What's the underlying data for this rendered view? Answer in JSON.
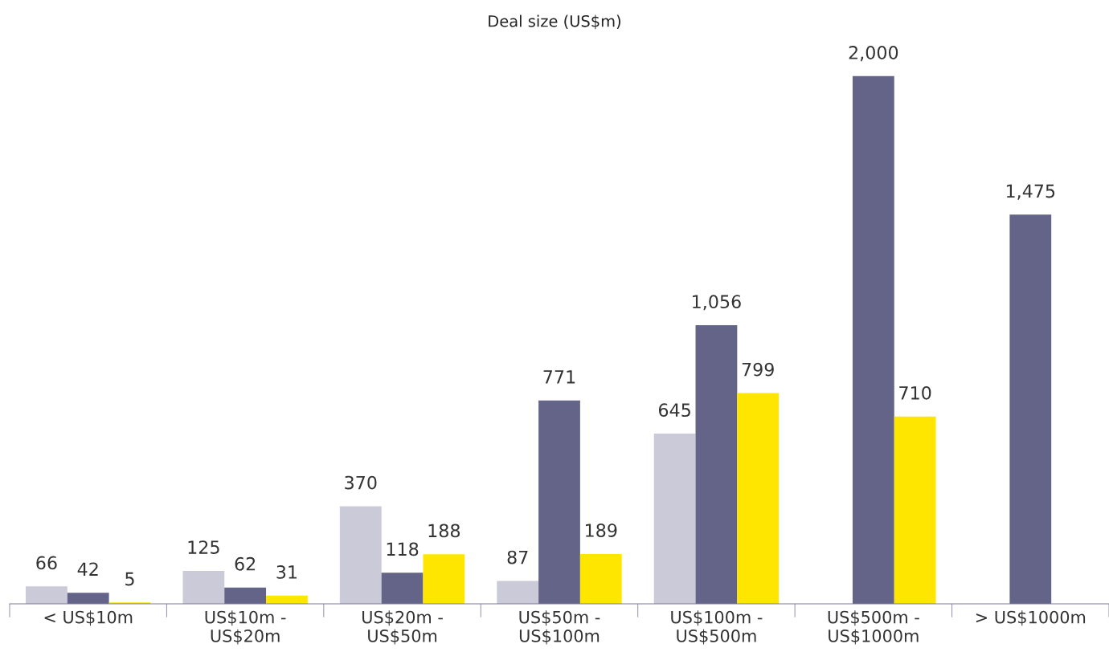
{
  "chart_data": {
    "type": "bar",
    "title": "Deal size (US$m)",
    "categories": [
      "< US$10m",
      "US$10m -\nUS$20m",
      "US$20m -\nUS$50m",
      "US$50m -\nUS$100m",
      "US$100m -\nUS$500m",
      "US$500m -\nUS$1000m",
      "> US$1000m"
    ],
    "series": [
      {
        "color": "#cbcad8",
        "values": [
          66,
          125,
          370,
          87,
          645,
          null,
          null
        ],
        "value_labels": [
          "66",
          "125",
          "370",
          "87",
          "645",
          null,
          null
        ]
      },
      {
        "color": "#646489",
        "values": [
          42,
          62,
          118,
          771,
          1056,
          2000,
          1475
        ],
        "value_labels": [
          "42",
          "62",
          "118",
          "771",
          "1,056",
          "2,000",
          "1,475"
        ]
      },
      {
        "color": "#ffe600",
        "values": [
          5,
          31,
          188,
          189,
          799,
          710,
          null
        ],
        "value_labels": [
          "5",
          "31",
          "188",
          "189",
          "799",
          "710",
          null
        ]
      }
    ],
    "grid": false,
    "legend": false
  }
}
